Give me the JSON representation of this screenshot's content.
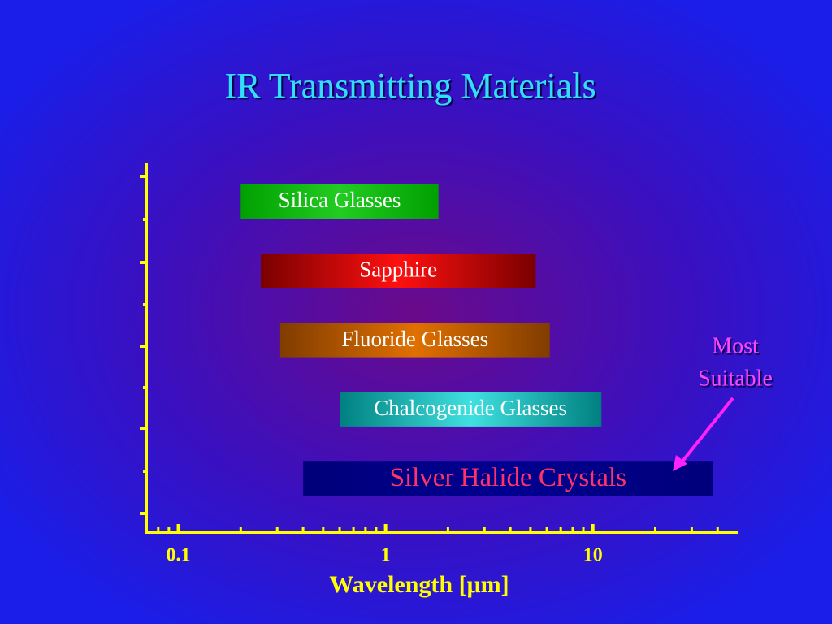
{
  "chart_data": {
    "type": "range-bar",
    "title": "IR Transmitting Materials",
    "x_label": "Wavelength [μm]",
    "xscale": "log",
    "xlim": [
      0.07,
      50
    ],
    "xticks": [
      0.1,
      1,
      10
    ],
    "axis_color": "#ffff00",
    "bars": [
      {
        "name": "Silica Glasses",
        "start": 0.2,
        "end": 1.8,
        "colors": [
          "#00a000",
          "#22cc22"
        ],
        "label_color": "#ffffff"
      },
      {
        "name": "Sapphire",
        "start": 0.25,
        "end": 5.3,
        "colors": [
          "#7a0000",
          "#ff1010"
        ],
        "label_color": "#ffffff"
      },
      {
        "name": "Fluoride Glasses",
        "start": 0.31,
        "end": 6.2,
        "colors": [
          "#803c00",
          "#e07000"
        ],
        "label_color": "#ffffff"
      },
      {
        "name": "Chalcogenide Glasses",
        "start": 0.6,
        "end": 11,
        "colors": [
          "#008080",
          "#40e0e0"
        ],
        "label_color": "#ffffff"
      },
      {
        "name": "Silver Halide Crystals",
        "start": 0.4,
        "end": 38,
        "colors": [
          "#00007a",
          "#000090"
        ],
        "label_color": "#ff3366"
      }
    ],
    "annotation": {
      "lines": [
        "Most",
        "Suitable"
      ],
      "color": "#ff44ff"
    }
  }
}
